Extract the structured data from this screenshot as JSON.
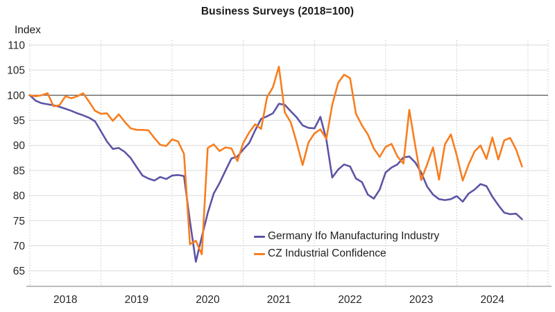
{
  "title": "Business Surveys (2018=100)",
  "y_axis_label": "Index",
  "colors": {
    "germany_ifo": "#5B54A5",
    "cz_confidence": "#F87D1E",
    "gridline": "#D9D9D9",
    "reference_line": "#58595B",
    "axis_line": "#A6A6A6",
    "tick_text": "#262626"
  },
  "chart_data": {
    "type": "line",
    "title": "Business Surveys (2018=100)",
    "ylabel": "Index",
    "xlabel": "",
    "x_frequency": "monthly",
    "x_start": "2018-01",
    "x_end": "2024-12",
    "x_tick_labels": [
      "2018",
      "2019",
      "2020",
      "2021",
      "2022",
      "2023",
      "2024"
    ],
    "y_ticks": [
      65,
      70,
      75,
      80,
      85,
      90,
      95,
      100,
      105,
      110
    ],
    "ylim": [
      62,
      110.5
    ],
    "reference_line": 100,
    "grid": "horizontal solid, vertical dotted at year starts",
    "legend_position": "inside bottom-center",
    "series": [
      {
        "name": "Germany Ifo Manufacturing Industry",
        "color": "#5B54A5",
        "values": [
          100.0,
          98.9,
          98.4,
          98.2,
          98.0,
          97.7,
          97.3,
          96.9,
          96.4,
          96.0,
          95.5,
          94.8,
          92.8,
          90.8,
          89.3,
          89.5,
          88.7,
          87.5,
          85.7,
          84.0,
          83.4,
          83.0,
          83.7,
          83.3,
          84.0,
          84.1,
          83.9,
          74.9,
          66.8,
          71.8,
          76.5,
          80.4,
          82.5,
          85.0,
          87.4,
          87.8,
          89.2,
          90.5,
          93.0,
          95.3,
          95.8,
          96.4,
          98.3,
          98.1,
          96.8,
          95.6,
          94.0,
          93.5,
          93.4,
          95.7,
          91.2,
          83.6,
          85.2,
          86.2,
          85.8,
          83.4,
          82.7,
          80.2,
          79.4,
          81.2,
          84.6,
          85.6,
          86.2,
          87.6,
          87.8,
          86.6,
          84.6,
          81.8,
          80.2,
          79.3,
          79.1,
          79.3,
          79.9,
          78.8,
          80.4,
          81.2,
          82.3,
          81.9,
          79.8,
          78.1,
          76.6,
          76.3,
          76.4,
          75.3
        ]
      },
      {
        "name": "CZ Industrial Confidence",
        "color": "#F87D1E",
        "values": [
          100.0,
          99.8,
          100.0,
          100.4,
          97.8,
          98.0,
          99.8,
          99.4,
          99.8,
          100.4,
          98.7,
          96.9,
          96.3,
          96.4,
          94.9,
          96.2,
          94.7,
          93.4,
          93.1,
          93.1,
          93.0,
          91.5,
          90.1,
          89.9,
          91.2,
          90.8,
          88.3,
          70.3,
          71.0,
          68.3,
          89.5,
          90.2,
          88.9,
          89.6,
          89.4,
          86.9,
          90.5,
          92.6,
          94.2,
          93.3,
          99.6,
          101.6,
          105.7,
          96.6,
          94.6,
          90.6,
          86.1,
          90.6,
          92.4,
          93.2,
          91.3,
          98.1,
          102.5,
          104.1,
          103.4,
          96.3,
          94.0,
          92.2,
          89.4,
          87.7,
          89.7,
          90.3,
          87.8,
          86.4,
          97.1,
          89.9,
          83.1,
          86.2,
          89.6,
          83.2,
          90.2,
          92.2,
          88.0,
          83.0,
          86.2,
          88.8,
          90.0,
          87.3,
          91.6,
          87.2,
          91.0,
          91.5,
          89.2,
          85.8
        ]
      }
    ]
  }
}
